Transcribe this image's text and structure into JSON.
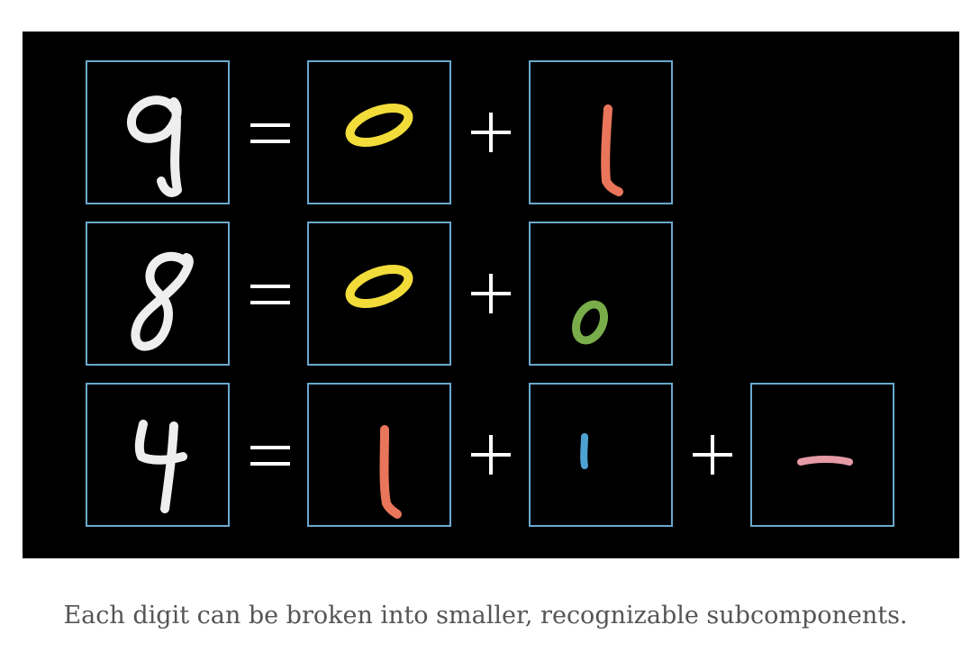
{
  "caption": "Each digit can be broken into smaller, recognizable subcomponents.",
  "colors": {
    "background": "#000000",
    "frame": "#6aa9cf",
    "digit": "#eeeeee",
    "loop": "#f1dc3a",
    "long_stroke": "#e9755a",
    "small_loop": "#79ad4a",
    "short_stroke": "#4ea2d1",
    "bar": "#e59aa6"
  },
  "rows": [
    {
      "digit": "9",
      "parts": [
        "upper loop",
        "long vertical stroke"
      ]
    },
    {
      "digit": "8",
      "parts": [
        "upper loop",
        "lower loop"
      ]
    },
    {
      "digit": "4",
      "parts": [
        "long vertical stroke",
        "short vertical stroke",
        "horizontal bar"
      ]
    }
  ]
}
